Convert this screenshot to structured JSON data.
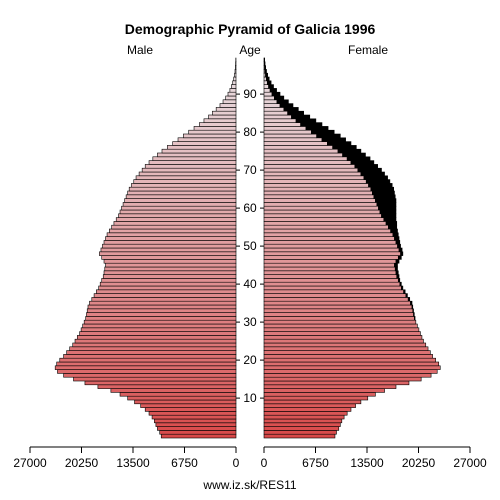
{
  "chart_data": {
    "type": "bar",
    "title": "Demographic Pyramid of Galicia 1996",
    "left_label": "Male",
    "center_label": "Age",
    "right_label": "Female",
    "footer": "www.iz.sk/RES11",
    "x_ticks_left": [
      "27000",
      "20250",
      "13500",
      "6750",
      "0"
    ],
    "x_ticks_right": [
      "0",
      "6750",
      "13500",
      "20250",
      "27000"
    ],
    "age_ticks": [
      "10",
      "20",
      "30",
      "40",
      "50",
      "60",
      "70",
      "80",
      "90"
    ],
    "xlim": [
      0,
      27000
    ],
    "age_range": [
      0,
      100
    ],
    "colors": {
      "young": "#d84848",
      "old": "#e8e0e4",
      "female_excess": "#000000",
      "outline": "#000000"
    },
    "series": [
      {
        "name": "Male",
        "values": [
          9800,
          10000,
          10300,
          10500,
          10700,
          11000,
          11400,
          11900,
          12500,
          13300,
          14200,
          15200,
          16400,
          18100,
          19800,
          21300,
          22600,
          23400,
          23700,
          23500,
          23100,
          22600,
          22200,
          21800,
          21400,
          21100,
          20800,
          20500,
          20300,
          20100,
          19900,
          19700,
          19600,
          19500,
          19400,
          19200,
          18900,
          18600,
          18300,
          18000,
          17800,
          17600,
          17400,
          17300,
          17200,
          17100,
          17300,
          17600,
          17900,
          17700,
          17500,
          17300,
          17100,
          16900,
          16600,
          16300,
          16000,
          15700,
          15400,
          15200,
          15000,
          14800,
          14600,
          14400,
          14200,
          14000,
          13700,
          13400,
          13100,
          12700,
          12300,
          11900,
          11400,
          10900,
          10300,
          9700,
          9000,
          8300,
          7600,
          6900,
          6200,
          5500,
          4800,
          4200,
          3600,
          3100,
          2600,
          2100,
          1700,
          1350,
          1050,
          800,
          600,
          430,
          300,
          200,
          130,
          80,
          50,
          30
        ]
      },
      {
        "name": "Female",
        "values": [
          9300,
          9500,
          9800,
          10000,
          10200,
          10500,
          10900,
          11400,
          12000,
          12700,
          13600,
          14600,
          15800,
          17300,
          19000,
          20600,
          21900,
          22700,
          23100,
          22900,
          22500,
          22100,
          21800,
          21500,
          21200,
          20900,
          20700,
          20500,
          20300,
          20100,
          19900,
          19800,
          19700,
          19600,
          19500,
          19400,
          19100,
          18800,
          18500,
          18200,
          18000,
          17800,
          17700,
          17600,
          17500,
          17500,
          17700,
          18000,
          18200,
          18100,
          17900,
          17800,
          17700,
          17600,
          17500,
          17400,
          17400,
          17300,
          17300,
          17300,
          17300,
          17300,
          17300,
          17200,
          17100,
          17000,
          16800,
          16500,
          16200,
          15800,
          15400,
          14900,
          14400,
          13900,
          13300,
          12700,
          12100,
          11400,
          10700,
          10000,
          9200,
          8400,
          7600,
          6800,
          6000,
          5200,
          4500,
          3800,
          3200,
          2600,
          2100,
          1650,
          1250,
          930,
          680,
          480,
          330,
          220,
          140,
          90
        ]
      }
    ]
  }
}
